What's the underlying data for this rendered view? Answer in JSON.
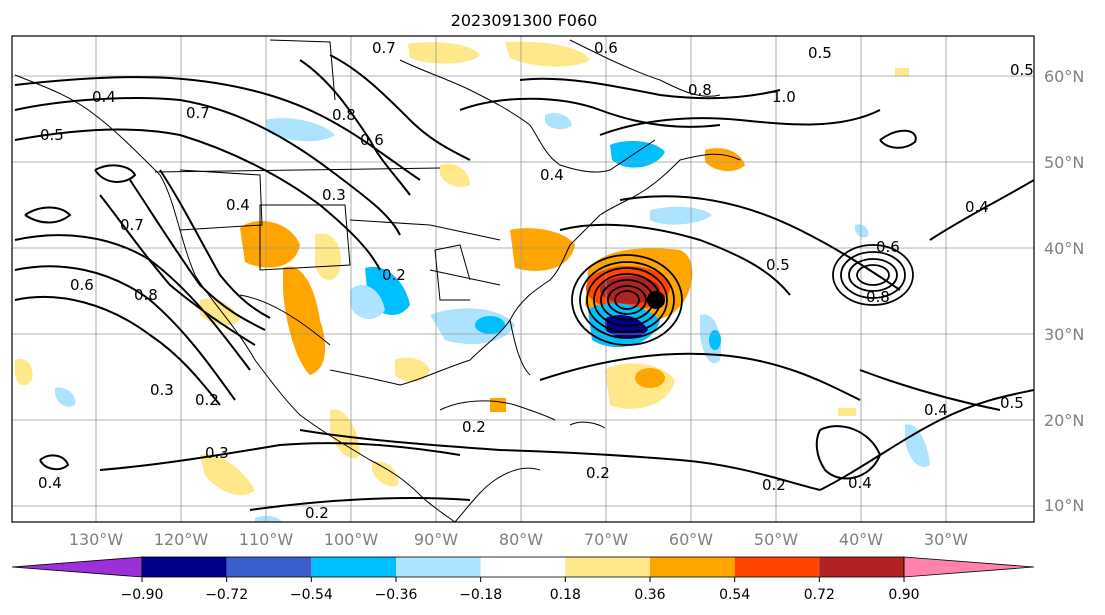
{
  "title": "2023091300 F060",
  "map": {
    "lat_labels": [
      "60°N",
      "50°N",
      "40°N",
      "30°N",
      "20°N",
      "10°N"
    ],
    "lon_labels": [
      "130°W",
      "120°W",
      "110°W",
      "100°W",
      "90°W",
      "80°W",
      "70°W",
      "60°W",
      "50°W",
      "40°W",
      "30°W"
    ],
    "contour_labels": [
      "0.7",
      "0.6",
      "0.5",
      "0.8",
      "1.0",
      "0.4",
      "0.7",
      "0.6",
      "0.8",
      "0.3",
      "0.4",
      "0.7",
      "0.8",
      "0.6",
      "0.2",
      "0.5",
      "0.6",
      "0.8",
      "0.4",
      "0.3",
      "0.2",
      "0.4",
      "0.2",
      "0.2",
      "0.4",
      "0.4",
      "0.5",
      "0.2",
      "0.4",
      "0.2",
      "0.3",
      "0.5",
      "0.5"
    ]
  },
  "colorbar": {
    "tick_labels": [
      "−0.90",
      "−0.72",
      "−0.54",
      "−0.36",
      "−0.18",
      "0.18",
      "0.36",
      "0.54",
      "0.72",
      "0.90"
    ],
    "colors": [
      "#9b30d9",
      "#00008b",
      "#3a5fcd",
      "#00bfff",
      "#aee3ff",
      "#ffffff",
      "#ffe88a",
      "#ffa500",
      "#ff4500",
      "#b22222",
      "#ff82ab"
    ]
  }
}
